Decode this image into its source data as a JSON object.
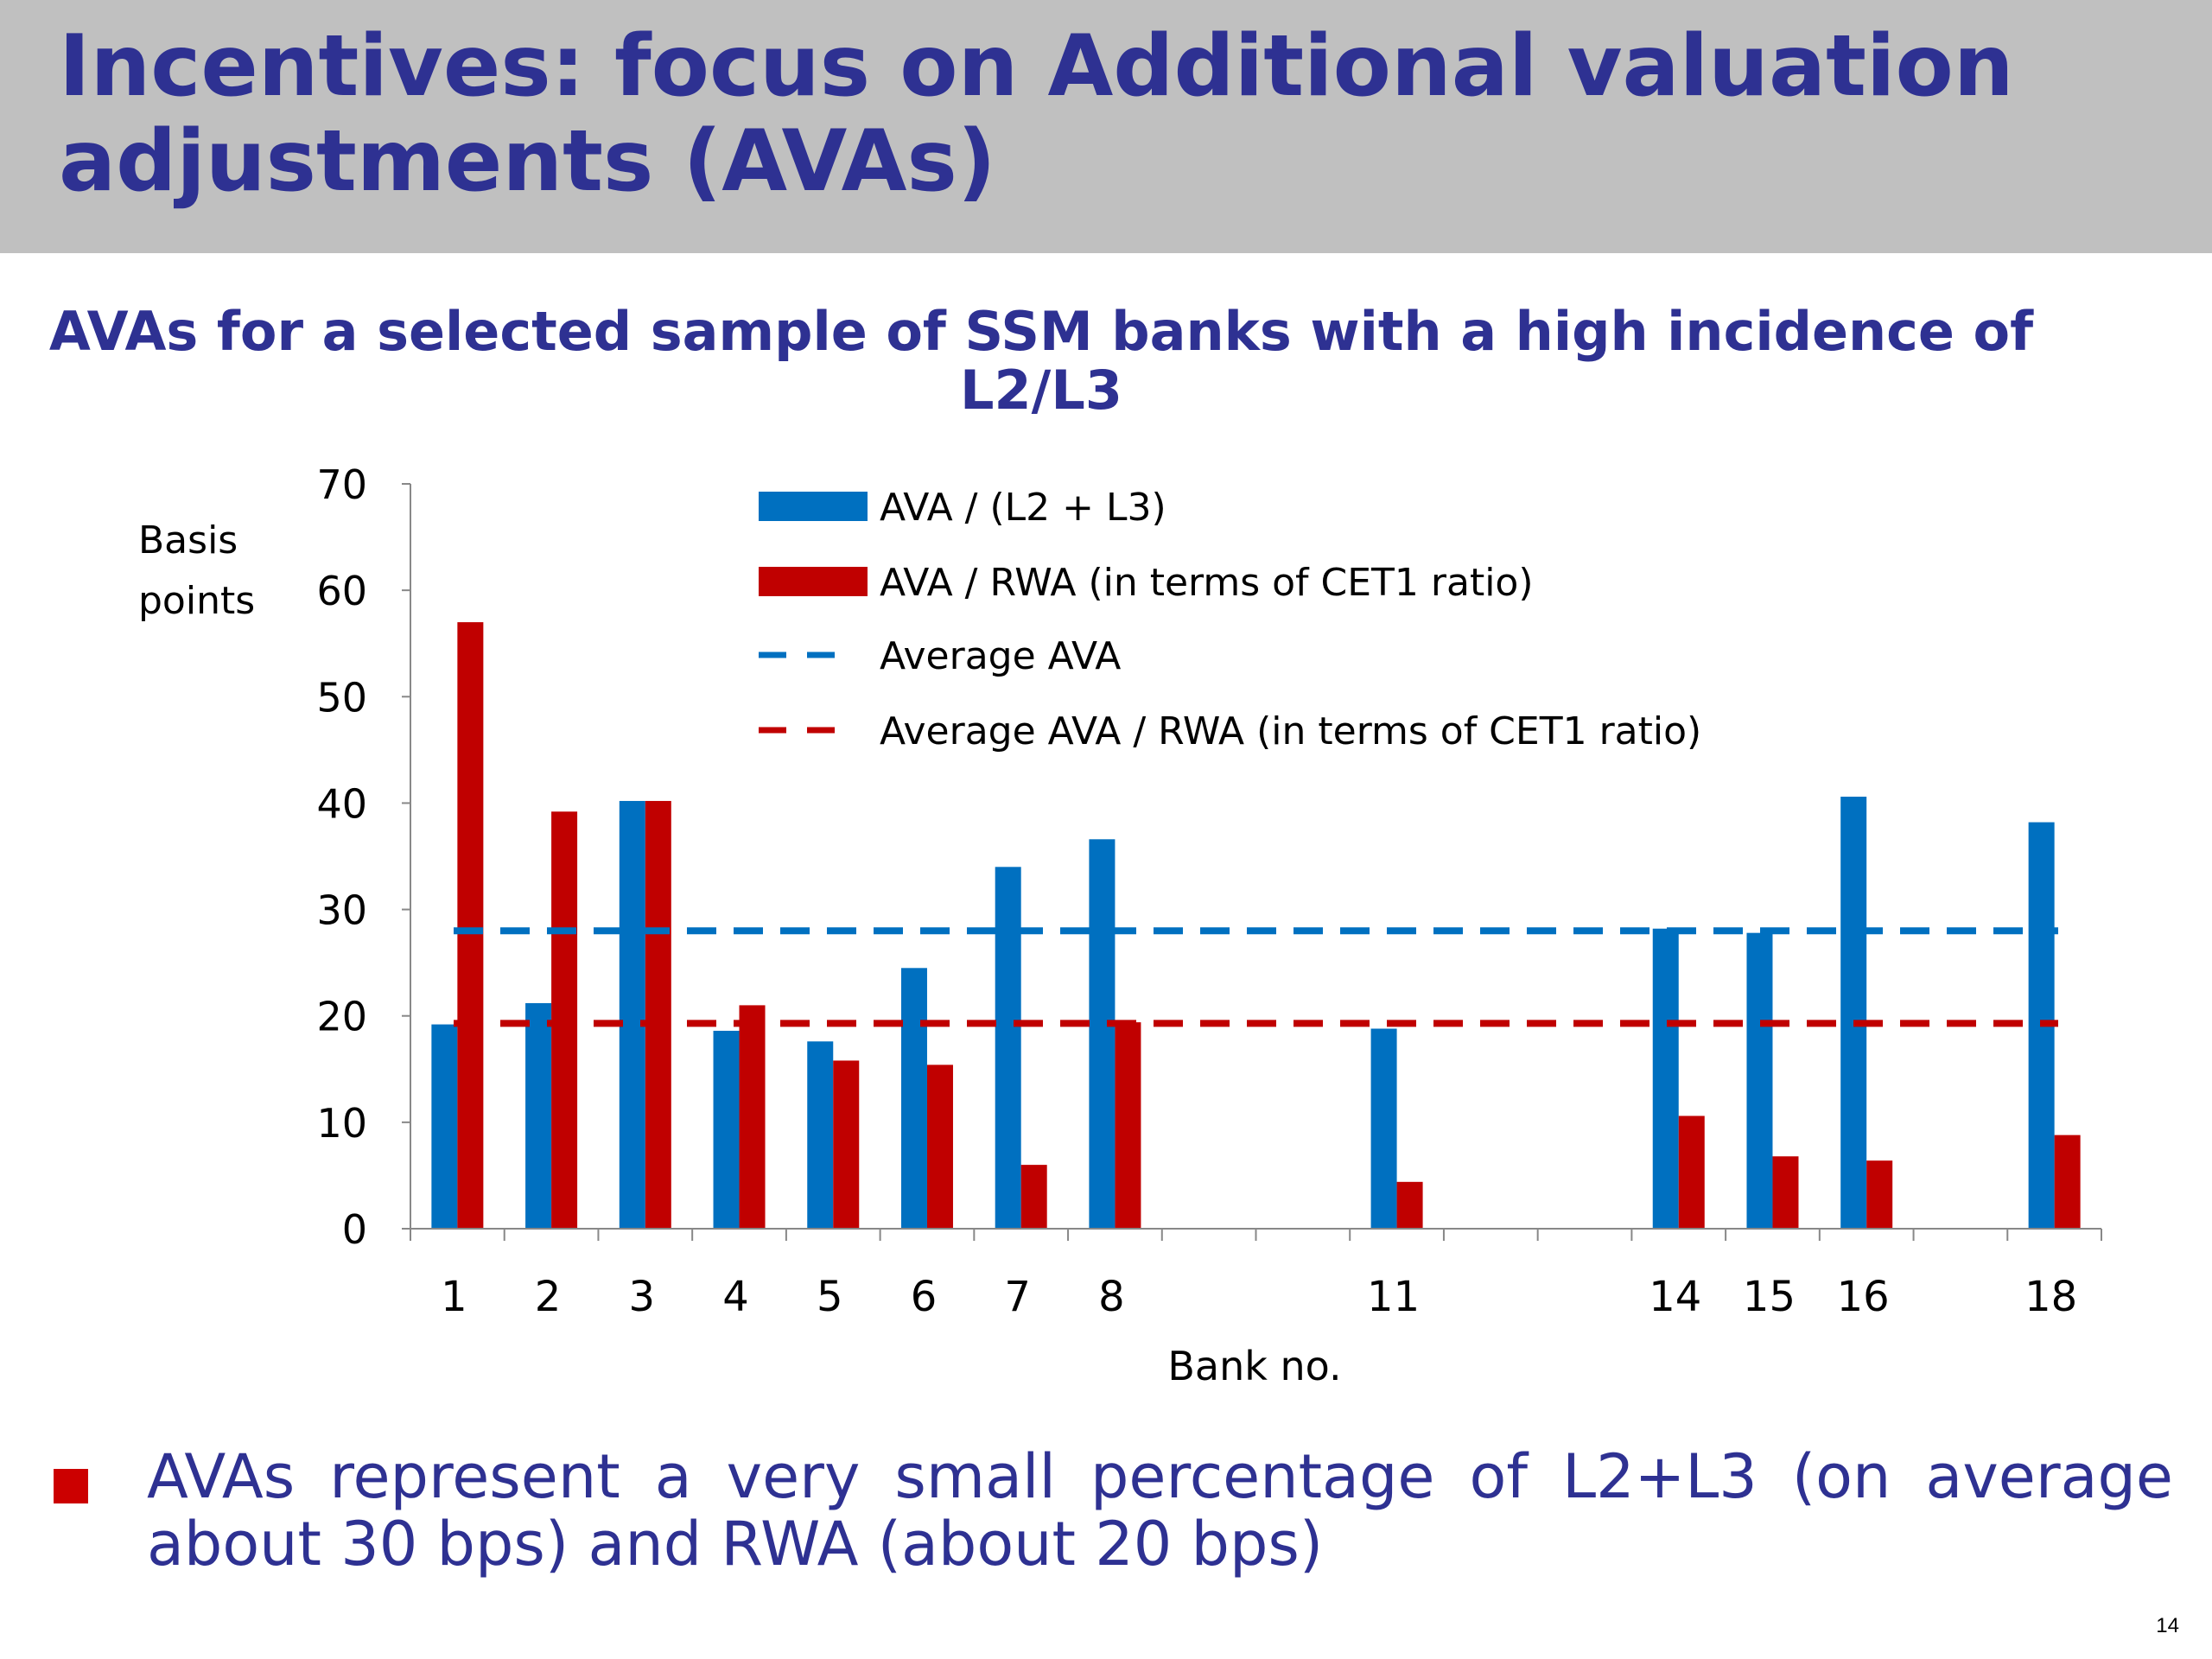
{
  "slide": {
    "title": "Incentives: focus on Additional valuation adjustments (AVAs)",
    "subtitle": "AVAs for a selected sample of SSM banks with a high incidence of L2/L3",
    "bullet": "AVAs represent a very small percentage of L2+L3 (on average about 30 bps) and RWA (about 20 bps)",
    "page_number": "14"
  },
  "chart_data": {
    "type": "bar",
    "title": "AVAs for a selected sample of SSM banks with a high incidence of L2/L3",
    "xlabel": "Bank no.",
    "ylabel": "Basis points",
    "ylabel_lines": [
      "Basis",
      "points"
    ],
    "ylim": [
      0,
      70
    ],
    "yticks": [
      0,
      10,
      20,
      30,
      40,
      50,
      60,
      70
    ],
    "categories": [
      "1",
      "2",
      "3",
      "4",
      "5",
      "6",
      "7",
      "8",
      "",
      "",
      "11",
      "",
      "",
      "14",
      "15",
      "16",
      "",
      "18"
    ],
    "series": [
      {
        "name": "AVA / (L2 + L3)",
        "color": "#0070c0",
        "values": [
          19.2,
          21.2,
          40.2,
          18.6,
          17.6,
          24.5,
          34.0,
          36.6,
          null,
          null,
          18.8,
          null,
          null,
          28.2,
          27.8,
          40.6,
          null,
          38.2
        ]
      },
      {
        "name": "AVA / RWA (in terms of CET1 ratio)",
        "color": "#c00000",
        "values": [
          57.0,
          39.2,
          40.2,
          21.0,
          15.8,
          15.4,
          6.0,
          19.4,
          null,
          null,
          4.4,
          null,
          null,
          10.6,
          6.8,
          6.4,
          null,
          8.8
        ]
      }
    ],
    "reference_lines": [
      {
        "name": "Average AVA",
        "value": 28.0,
        "color": "#0070c0",
        "style": "dashed"
      },
      {
        "name": "Average AVA / RWA (in terms of CET1 ratio)",
        "value": 19.3,
        "color": "#c00000",
        "style": "dashed"
      }
    ],
    "legend_position": "top-center",
    "grid": false
  }
}
